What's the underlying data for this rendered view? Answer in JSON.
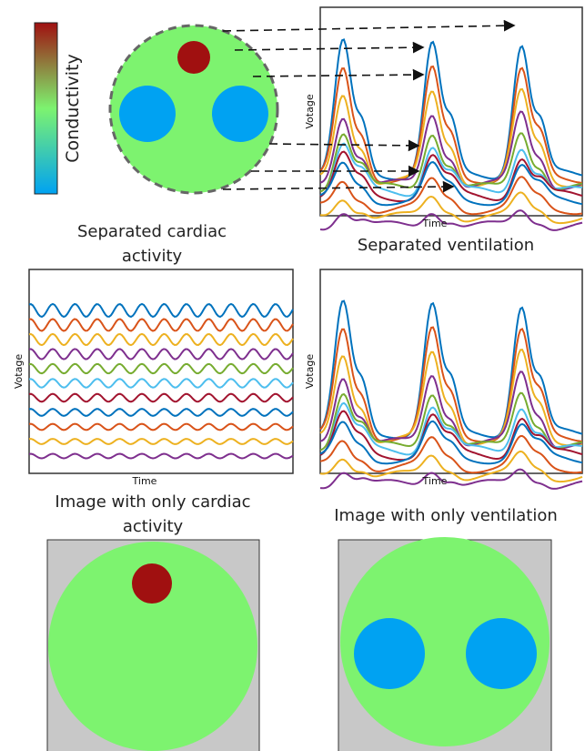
{
  "colorbar": {
    "label": "Conductivity"
  },
  "signal_plots": [
    {
      "y_label": "Votage",
      "x_label": "Time"
    },
    {
      "title": "Separated cardiac activity",
      "y_label": "Votage",
      "x_label": "Time"
    },
    {
      "title": "Separated ventilation",
      "y_label": "Votage",
      "x_label": "Time"
    }
  ],
  "images": [
    {
      "title": "Image with only cardiac activity"
    },
    {
      "title": "Image with only ventilation"
    }
  ]
}
